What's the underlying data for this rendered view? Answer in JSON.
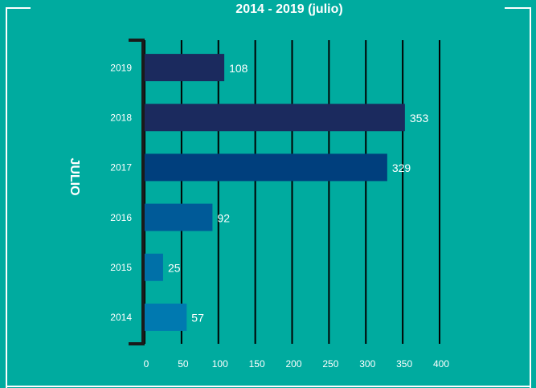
{
  "chart_data": {
    "type": "bar",
    "orientation": "horizontal",
    "title": "2014 - 2019 (julio)",
    "y_label": "JULIO",
    "categories": [
      "2019",
      "2018",
      "2017",
      "2016",
      "2015",
      "2014"
    ],
    "values": [
      108,
      353,
      329,
      92,
      25,
      57
    ],
    "colors": [
      "#1b2a5e",
      "#1b2a5e",
      "#003f7d",
      "#005a98",
      "#0070a8",
      "#0079b0"
    ],
    "xlim": [
      0,
      400
    ],
    "xticks": [
      0,
      50,
      100,
      150,
      200,
      250,
      300,
      350,
      400
    ],
    "grid": true
  }
}
